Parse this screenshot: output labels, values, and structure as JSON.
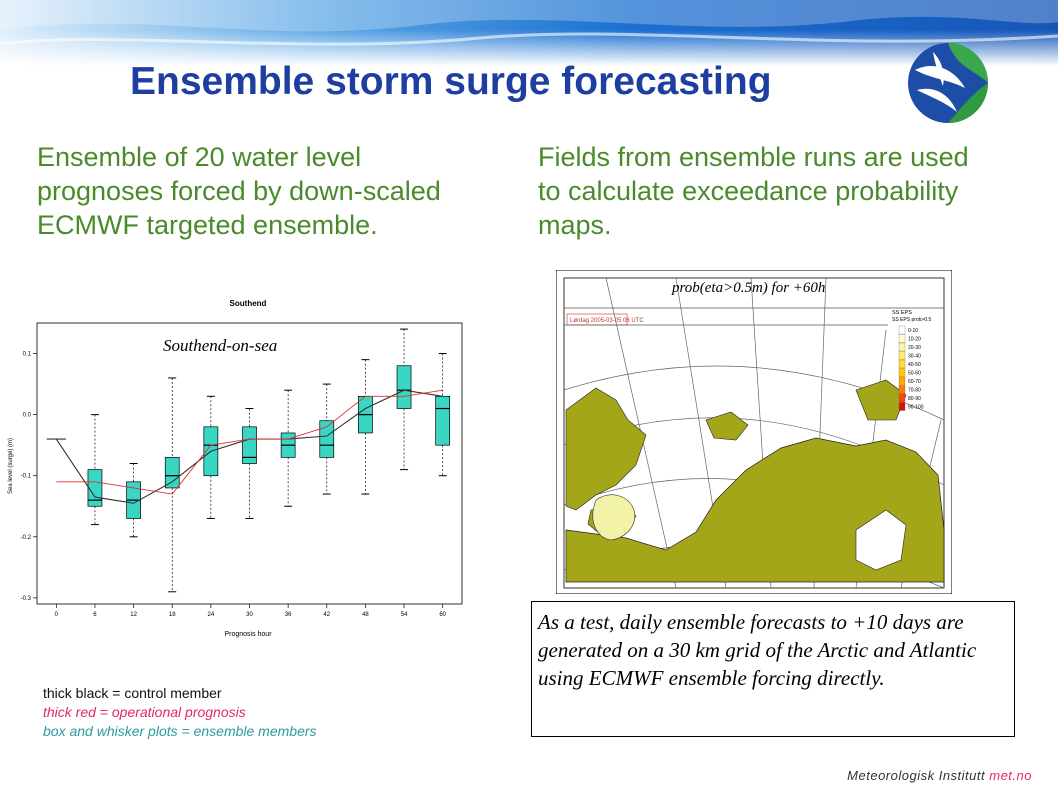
{
  "slide": {
    "title": "Ensemble storm surge forecasting",
    "left_text": "Ensemble of 20 water level prognoses forced by down-scaled ECMWF targeted ensemble.",
    "right_text": "Fields from ensemble runs are used to calculate exceedance probability maps.",
    "annotation": "Southend-on-sea",
    "map_title": "prob(eta>0.5m) for +60h",
    "test_text": "As a test, daily ensemble forecasts to +10 days are generated on a 30 km grid of the Arctic and Atlantic using ECMWF ensemble forcing directly.",
    "legend": {
      "black": "thick black = control member",
      "red": "thick red  = operational prognosis",
      "teal": "box and whisker plots = ensemble members"
    },
    "footer": {
      "institute": "Meteorologisk Institutt",
      "site": "met.no"
    },
    "map_labels": {
      "run": "Lørdag 2005-03-05 06 UTC",
      "legend_top": "SS EPS",
      "legend_sub": "SS EPS prob>0.5",
      "legend_bins": [
        "0-10",
        "10-20",
        "20-30",
        "30-40",
        "40-50",
        "50-60",
        "60-70",
        "70-80",
        "80-90",
        "90-100"
      ]
    }
  },
  "colors": {
    "title": "#1f3fa0",
    "bullet": "#4a8a2a",
    "box_fill": "#3ad6c4",
    "operational": "#e03030",
    "control": "#333333",
    "land": "#a4a61a"
  },
  "chart_data": {
    "type": "box",
    "title": "Southend",
    "xlabel": "Prognosis hour",
    "ylabel": "Sea level (surge) (m)",
    "ylim": [
      -0.3,
      0.15
    ],
    "yticks": [
      0.1,
      0.0,
      -0.1,
      -0.2,
      -0.3
    ],
    "ytick_labels": [
      "0.1",
      "0.0",
      "-0.1",
      "-0.2",
      "-0.3"
    ],
    "x": [
      0,
      6,
      12,
      18,
      24,
      30,
      36,
      42,
      48,
      54,
      60
    ],
    "boxes": [
      {
        "x": 6,
        "min": -0.18,
        "q1": -0.15,
        "median": -0.14,
        "q3": -0.09,
        "max": 0.0
      },
      {
        "x": 12,
        "min": -0.2,
        "q1": -0.17,
        "median": -0.14,
        "q3": -0.11,
        "max": -0.08
      },
      {
        "x": 18,
        "min": -0.29,
        "q1": -0.12,
        "median": -0.1,
        "q3": -0.07,
        "max": 0.06
      },
      {
        "x": 24,
        "min": -0.17,
        "q1": -0.1,
        "median": -0.05,
        "q3": -0.02,
        "max": 0.03
      },
      {
        "x": 30,
        "min": -0.17,
        "q1": -0.08,
        "median": -0.07,
        "q3": -0.02,
        "max": 0.01
      },
      {
        "x": 36,
        "min": -0.15,
        "q1": -0.07,
        "median": -0.05,
        "q3": -0.03,
        "max": 0.04
      },
      {
        "x": 42,
        "min": -0.13,
        "q1": -0.07,
        "median": -0.05,
        "q3": -0.01,
        "max": 0.05
      },
      {
        "x": 48,
        "min": -0.13,
        "q1": -0.03,
        "median": 0.0,
        "q3": 0.03,
        "max": 0.09
      },
      {
        "x": 54,
        "min": -0.09,
        "q1": 0.01,
        "median": 0.04,
        "q3": 0.08,
        "max": 0.14
      },
      {
        "x": 60,
        "min": -0.1,
        "q1": -0.05,
        "median": 0.01,
        "q3": 0.03,
        "max": 0.1
      }
    ],
    "series": [
      {
        "name": "thick black = control member",
        "color": "#333333",
        "values": [
          -0.04,
          -0.135,
          -0.145,
          -0.11,
          -0.06,
          -0.04,
          -0.04,
          -0.035,
          0.01,
          0.04,
          0.03
        ]
      },
      {
        "name": "thick red  = operational prognosis",
        "color": "#e03030",
        "values": [
          -0.11,
          -0.11,
          -0.12,
          -0.13,
          -0.05,
          -0.04,
          -0.04,
          -0.02,
          0.03,
          0.03,
          0.04
        ]
      }
    ]
  }
}
